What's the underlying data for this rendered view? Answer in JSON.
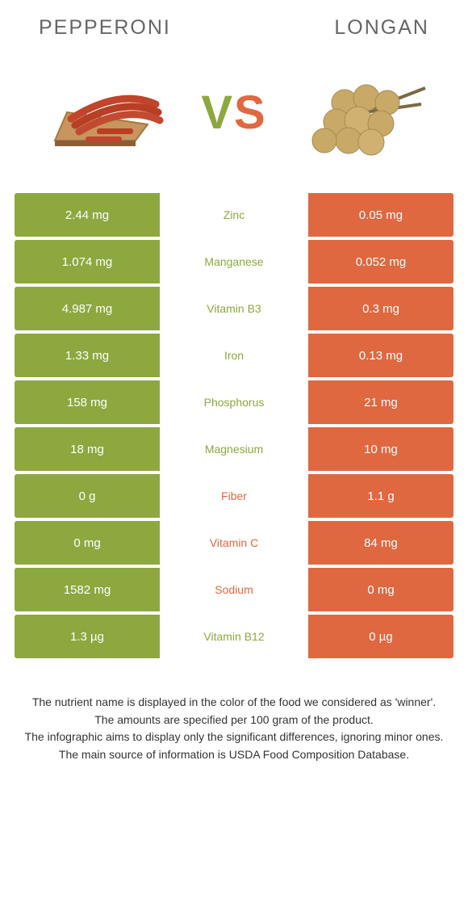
{
  "header": {
    "left_title": "Pepperoni",
    "right_title": "Longan"
  },
  "vs": {
    "v": "V",
    "s": "S"
  },
  "colors": {
    "green": "#8ca83f",
    "orange": "#e06840"
  },
  "rows": [
    {
      "left": "2.44 mg",
      "label": "Zinc",
      "right": "0.05 mg",
      "winner": "green"
    },
    {
      "left": "1.074 mg",
      "label": "Manganese",
      "right": "0.052 mg",
      "winner": "green"
    },
    {
      "left": "4.987 mg",
      "label": "Vitamin B3",
      "right": "0.3 mg",
      "winner": "green"
    },
    {
      "left": "1.33 mg",
      "label": "Iron",
      "right": "0.13 mg",
      "winner": "green"
    },
    {
      "left": "158 mg",
      "label": "Phosphorus",
      "right": "21 mg",
      "winner": "green"
    },
    {
      "left": "18 mg",
      "label": "Magnesium",
      "right": "10 mg",
      "winner": "green"
    },
    {
      "left": "0 g",
      "label": "Fiber",
      "right": "1.1 g",
      "winner": "orange"
    },
    {
      "left": "0 mg",
      "label": "Vitamin C",
      "right": "84 mg",
      "winner": "orange"
    },
    {
      "left": "1582 mg",
      "label": "Sodium",
      "right": "0 mg",
      "winner": "orange"
    },
    {
      "left": "1.3 µg",
      "label": "Vitamin B12",
      "right": "0 µg",
      "winner": "green"
    }
  ],
  "footnotes": [
    "The nutrient name is displayed in the color of the food we considered as 'winner'.",
    "The amounts are specified per 100 gram of the product.",
    "The infographic aims to display only the significant differences, ignoring minor ones.",
    "The main source of information is USDA Food Composition Database."
  ]
}
